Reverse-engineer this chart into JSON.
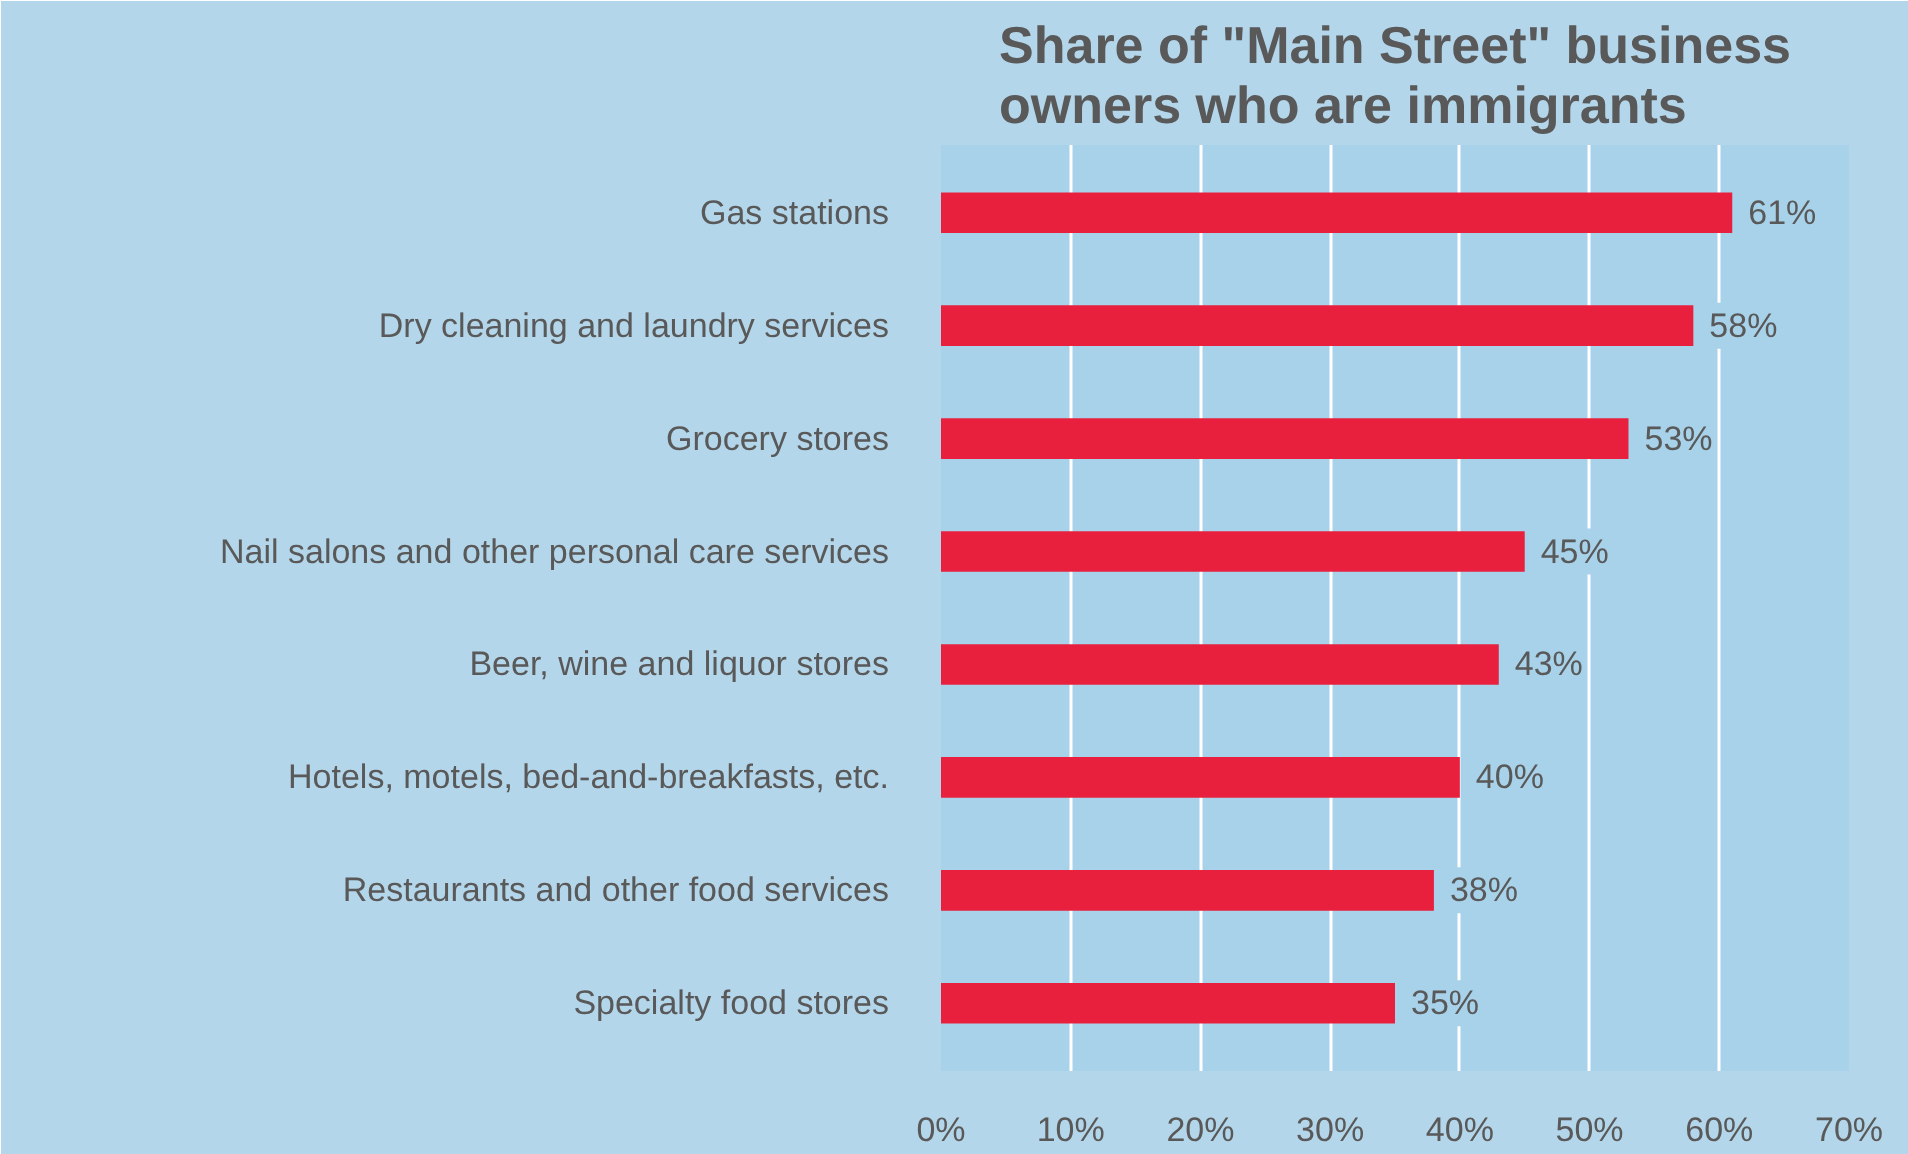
{
  "chart_data": {
    "type": "bar",
    "orientation": "horizontal",
    "title": "Share of \"Main Street\" business\nowners who are immigrants",
    "categories": [
      "Gas stations",
      "Dry cleaning and laundry services",
      "Grocery stores",
      "Nail salons and other personal care services",
      "Beer, wine and liquor stores",
      "Hotels, motels, bed-and-breakfasts, etc.",
      "Restaurants and other food services",
      "Specialty food stores"
    ],
    "values": [
      61,
      58,
      53,
      45,
      43,
      40,
      38,
      35
    ],
    "value_labels": [
      "61%",
      "58%",
      "53%",
      "45%",
      "43%",
      "40%",
      "38%",
      "35%"
    ],
    "color": "#e8203e",
    "xlim": [
      0,
      70
    ],
    "xticks": [
      {
        "value": 0,
        "label": "0%"
      },
      {
        "value": 10,
        "label": "10%"
      },
      {
        "value": 20,
        "label": "20%"
      },
      {
        "value": 30,
        "label": "30%"
      },
      {
        "value": 40,
        "label": "40%"
      },
      {
        "value": 50,
        "label": "50%"
      },
      {
        "value": 60,
        "label": "60%"
      },
      {
        "value": 70,
        "label": "70%"
      }
    ],
    "grid": "x"
  }
}
